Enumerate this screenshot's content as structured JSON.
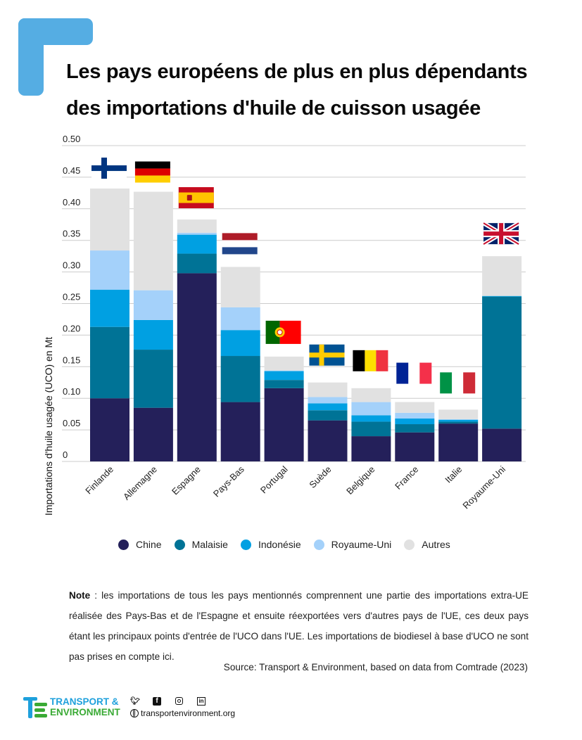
{
  "title": {
    "line1": "Les pays européens de plus en plus dépendants",
    "line2": "des importations d'huile de cuisson usagée"
  },
  "chart_data": {
    "type": "bar",
    "stacked": true,
    "title": "Les pays européens de plus en plus dépendants des importations d'huile de cuisson usagée",
    "xlabel": "",
    "ylabel": "Importations d'huile usagée (UCO) en Mt",
    "ylim": [
      0,
      0.5
    ],
    "yticks": [
      0,
      0.05,
      0.1,
      0.15,
      0.2,
      0.25,
      0.3,
      0.35,
      0.4,
      0.45,
      0.5
    ],
    "ytick_labels": [
      "0",
      "0.05",
      "0.10",
      "0.15",
      "0.20",
      "0.25",
      "0.30",
      "0.35",
      "0.40",
      "0.45",
      "0.50"
    ],
    "grid": true,
    "legend_position": "bottom",
    "categories": [
      "Finlande",
      "Allemagne",
      "Espagne",
      "Pays-Bas",
      "Portugal",
      "Suède",
      "Belgique",
      "France",
      "Italie",
      "Royaume-Uni"
    ],
    "flags": [
      "finland",
      "germany",
      "spain",
      "netherlands",
      "portugal",
      "sweden",
      "belgium",
      "france",
      "italy",
      "united-kingdom"
    ],
    "series": [
      {
        "name": "Chine",
        "color": "#24205a",
        "values": [
          0.1,
          0.085,
          0.298,
          0.094,
          0.116,
          0.065,
          0.04,
          0.046,
          0.06,
          0.052
        ]
      },
      {
        "name": "Malaisie",
        "color": "#007396",
        "values": [
          0.113,
          0.092,
          0.031,
          0.073,
          0.013,
          0.016,
          0.023,
          0.013,
          0.003,
          0.209
        ]
      },
      {
        "name": "Indonésie",
        "color": "#00a0e2",
        "values": [
          0.059,
          0.047,
          0.03,
          0.041,
          0.014,
          0.011,
          0.01,
          0.009,
          0.003,
          0.001
        ]
      },
      {
        "name": "Royaume-Uni",
        "color": "#a4d1fa",
        "values": [
          0.062,
          0.047,
          0.003,
          0.036,
          0.001,
          0.01,
          0.021,
          0.009,
          0.001,
          0.0
        ]
      },
      {
        "name": "Autres",
        "color": "#e1e1e1",
        "values": [
          0.098,
          0.156,
          0.021,
          0.064,
          0.022,
          0.023,
          0.022,
          0.017,
          0.015,
          0.063
        ]
      }
    ]
  },
  "legend": {
    "items": [
      {
        "label": "Chine",
        "color": "#24205a"
      },
      {
        "label": "Malaisie",
        "color": "#007396"
      },
      {
        "label": "Indonésie",
        "color": "#00a0e2"
      },
      {
        "label": "Royaume-Uni",
        "color": "#a4d1fa"
      },
      {
        "label": "Autres",
        "color": "#e1e1e1"
      }
    ]
  },
  "note": {
    "label": "Note",
    "text": " : les importations de tous les pays mentionnés comprennent une partie des importations extra-UE réalisée des Pays-Bas et de l'Espagne et ensuite réexportées vers d'autres pays de l'UE, ces deux pays étant les principaux points d'entrée de l'UCO dans l'UE. Les importations de biodiesel à base d'UCO ne sont pas prises en compte ici."
  },
  "source": "Source: Transport & Environment, based on data from Comtrade (2023)",
  "footer": {
    "brand_line1": "TRANSPORT &",
    "brand_line2": "ENVIRONMENT",
    "social_icons": [
      "twitter-icon",
      "facebook-icon",
      "instagram-icon",
      "linkedin-icon"
    ],
    "website": "transportenvironment.org"
  },
  "colors": {
    "accent": "#55ade3",
    "brand_blue": "#1ea0dc",
    "brand_green": "#3aaa35"
  }
}
